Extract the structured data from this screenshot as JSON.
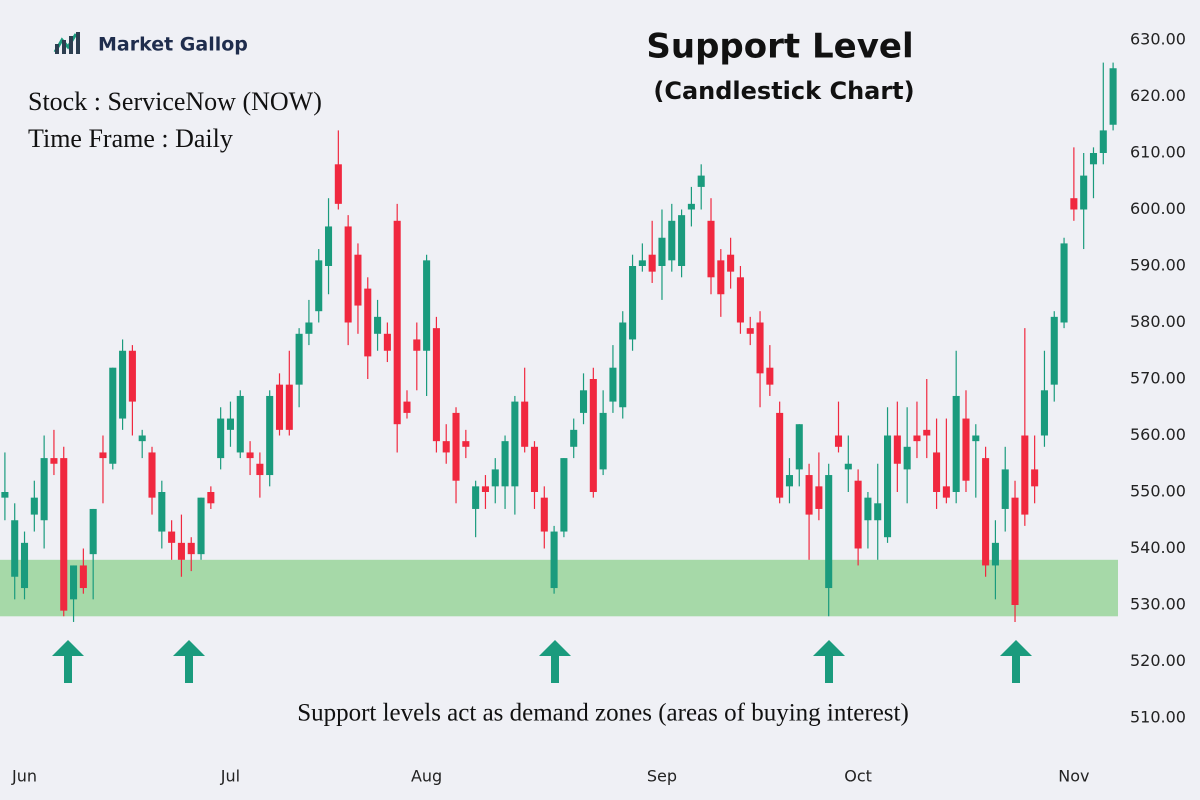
{
  "logo": {
    "text": "Market Gallop"
  },
  "chart_data": {
    "type": "candlestick",
    "title": "Support Level",
    "subtitle": "(Candlestick Chart)",
    "annotations": [
      "Stock : ServiceNow (NOW)",
      "Time Frame : Daily",
      "Support levels act as demand zones (areas of buying interest)"
    ],
    "up_color": "#1a9b7d",
    "down_color": "#f0283f",
    "support_zone": [
      528,
      538
    ],
    "support_color": "#a6d9a8",
    "open": [
      549,
      535,
      533,
      546,
      545,
      556,
      556,
      531,
      537,
      539,
      557,
      555,
      563,
      575,
      559,
      557,
      543,
      543,
      541,
      541,
      539,
      550,
      556,
      561,
      557,
      557,
      555,
      553,
      569,
      569,
      569,
      578,
      582,
      590,
      608,
      597,
      592,
      586,
      578,
      578,
      598,
      566,
      577,
      575,
      579,
      559,
      564,
      559,
      547,
      551,
      551,
      551,
      551,
      566,
      558,
      549,
      533,
      543,
      558,
      564,
      570,
      554,
      566,
      565,
      577,
      590,
      592,
      590,
      591,
      590,
      600,
      604,
      598,
      591,
      592,
      588,
      579,
      580,
      572,
      564,
      551,
      554,
      553,
      551,
      533,
      560,
      554,
      552,
      545,
      545,
      542,
      560,
      554,
      560,
      561,
      557,
      551,
      550,
      563,
      559,
      556,
      537,
      547,
      549,
      560,
      554,
      560,
      569,
      580,
      602,
      600,
      608,
      610,
      615
    ],
    "high": [
      557,
      548,
      543,
      552,
      560,
      561,
      558,
      537,
      540,
      547,
      560,
      572,
      577,
      576,
      561,
      558,
      552,
      545,
      546,
      542,
      549,
      551,
      565,
      566,
      568,
      559,
      557,
      568,
      571,
      575,
      579,
      584,
      593,
      602,
      614,
      599,
      594,
      588,
      584,
      580,
      601,
      568,
      580,
      592,
      581,
      562,
      565,
      561,
      552,
      553,
      556,
      560,
      567,
      572,
      559,
      551,
      544,
      556,
      563,
      571,
      572,
      568,
      576,
      582,
      592,
      594,
      598,
      600,
      601,
      600,
      604,
      608,
      602,
      593,
      595,
      590,
      581,
      582,
      576,
      566,
      556,
      562,
      555,
      557,
      555,
      566,
      560,
      554,
      550,
      555,
      565,
      566,
      565,
      566,
      570,
      563,
      563,
      575,
      568,
      562,
      558,
      545,
      558,
      552,
      579,
      560,
      575,
      582,
      595,
      611,
      610,
      611,
      626,
      626
    ],
    "low": [
      545,
      531,
      531,
      543,
      540,
      553,
      528,
      527,
      532,
      531,
      548,
      554,
      561,
      560,
      556,
      546,
      540,
      538,
      535,
      536,
      538,
      547,
      554,
      558,
      556,
      553,
      549,
      551,
      560,
      560,
      565,
      576,
      580,
      585,
      600,
      576,
      578,
      570,
      575,
      573,
      557,
      563,
      568,
      567,
      557,
      555,
      548,
      556,
      542,
      547,
      548,
      547,
      546,
      557,
      547,
      540,
      532,
      542,
      556,
      562,
      549,
      553,
      564,
      563,
      575,
      589,
      587,
      584,
      589,
      588,
      597,
      600,
      585,
      581,
      586,
      578,
      576,
      565,
      567,
      548,
      548,
      551,
      538,
      545,
      528,
      557,
      550,
      537,
      540,
      538,
      541,
      550,
      548,
      556,
      556,
      547,
      548,
      548,
      550,
      549,
      535,
      531,
      543,
      527,
      544,
      548,
      558,
      566,
      579,
      598,
      593,
      602,
      608,
      614
    ],
    "close": [
      550,
      545,
      541,
      549,
      556,
      555,
      529,
      537,
      533,
      547,
      556,
      572,
      575,
      566,
      560,
      549,
      550,
      541,
      538,
      539,
      549,
      548,
      563,
      563,
      567,
      556,
      553,
      567,
      561,
      561,
      578,
      580,
      591,
      597,
      601,
      580,
      583,
      574,
      581,
      575,
      562,
      564,
      575,
      591,
      559,
      557,
      552,
      558,
      551,
      550,
      554,
      559,
      566,
      558,
      550,
      543,
      543,
      556,
      561,
      568,
      550,
      564,
      572,
      580,
      590,
      591,
      589,
      595,
      598,
      599,
      601,
      606,
      588,
      585,
      589,
      580,
      578,
      571,
      569,
      549,
      553,
      562,
      546,
      547,
      553,
      558,
      555,
      540,
      549,
      548,
      560,
      555,
      558,
      559,
      560,
      550,
      549,
      567,
      552,
      560,
      537,
      541,
      554,
      530,
      546,
      551,
      568,
      581,
      594,
      600,
      606,
      610,
      614,
      625
    ],
    "xlim": [
      -0.5,
      113.5
    ],
    "xticks": [
      {
        "value": 2,
        "label": "Jun"
      },
      {
        "value": 23,
        "label": "Jul"
      },
      {
        "value": 43,
        "label": "Aug"
      },
      {
        "value": 67,
        "label": "Sep"
      },
      {
        "value": 87,
        "label": "Oct"
      },
      {
        "value": 109,
        "label": "Nov"
      }
    ],
    "ylim": [
      510,
      630
    ],
    "yticks": [
      {
        "value": 510,
        "label": "510.00"
      },
      {
        "value": 520,
        "label": "520.00"
      },
      {
        "value": 530,
        "label": "530.00"
      },
      {
        "value": 540,
        "label": "540.00"
      },
      {
        "value": 550,
        "label": "550.00"
      },
      {
        "value": 560,
        "label": "560.00"
      },
      {
        "value": 570,
        "label": "570.00"
      },
      {
        "value": 580,
        "label": "580.00"
      },
      {
        "value": 590,
        "label": "590.00"
      },
      {
        "value": 600,
        "label": "600.00"
      },
      {
        "value": 610,
        "label": "610.00"
      },
      {
        "value": 620,
        "label": "620.00"
      },
      {
        "value": 630,
        "label": "630.00"
      }
    ]
  }
}
